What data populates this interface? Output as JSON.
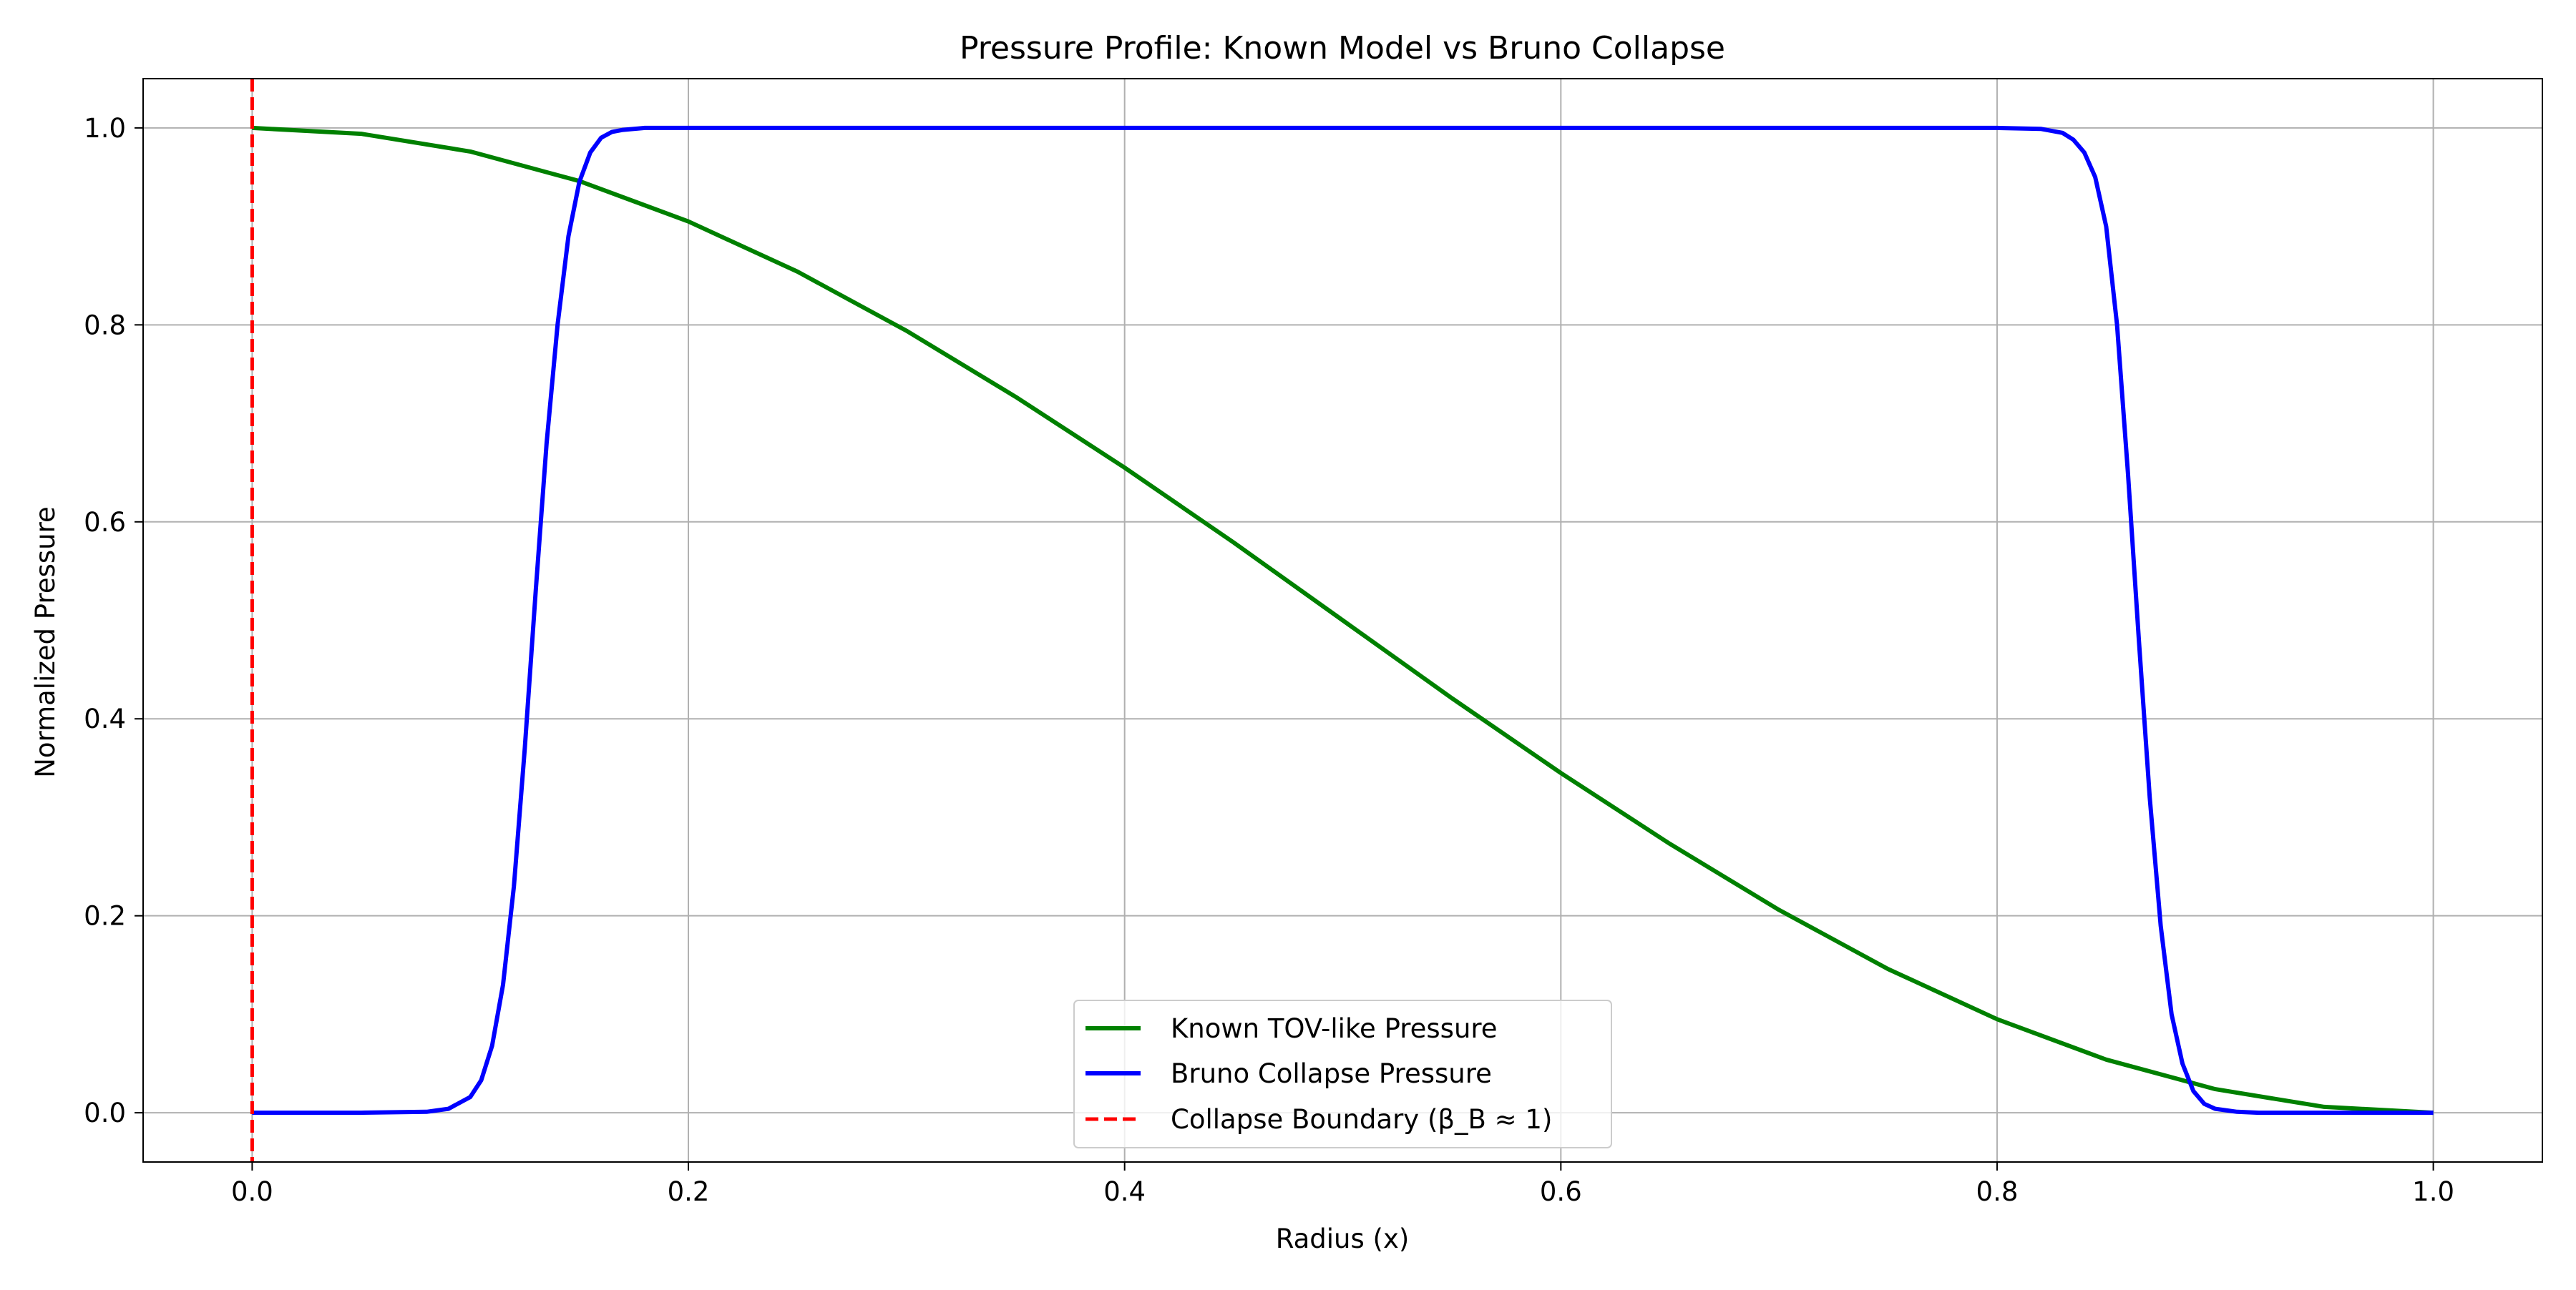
{
  "chart_data": {
    "type": "line",
    "title": "Pressure Profile: Known Model vs Bruno Collapse",
    "xlabel": "Radius (x)",
    "ylabel": "Normalized Pressure",
    "xlim": [
      -0.05,
      1.05
    ],
    "ylim": [
      -0.05,
      1.05
    ],
    "xticks": [
      0.0,
      0.2,
      0.4,
      0.6,
      0.8,
      1.0
    ],
    "xtick_labels": [
      "0.0",
      "0.2",
      "0.4",
      "0.6",
      "0.8",
      "1.0"
    ],
    "yticks": [
      0.0,
      0.2,
      0.4,
      0.6,
      0.8,
      1.0
    ],
    "ytick_labels": [
      "0.0",
      "0.2",
      "0.4",
      "0.6",
      "0.8",
      "1.0"
    ],
    "grid": true,
    "legend_position": "bottom-center",
    "series": [
      {
        "name": "Known TOV-like Pressure",
        "color": "#008000",
        "style": "solid",
        "x": [
          0.0,
          0.05,
          0.1,
          0.15,
          0.2,
          0.25,
          0.3,
          0.35,
          0.4,
          0.45,
          0.5,
          0.55,
          0.6,
          0.65,
          0.7,
          0.75,
          0.8,
          0.85,
          0.9,
          0.95,
          1.0
        ],
        "y": [
          1.0,
          0.994,
          0.976,
          0.946,
          0.905,
          0.854,
          0.794,
          0.727,
          0.655,
          0.579,
          0.5,
          0.421,
          0.345,
          0.273,
          0.206,
          0.146,
          0.095,
          0.054,
          0.024,
          0.006,
          0.0
        ]
      },
      {
        "name": "Bruno Collapse Pressure",
        "color": "#0000ff",
        "style": "solid",
        "x": [
          0.0,
          0.05,
          0.08,
          0.09,
          0.1,
          0.105,
          0.11,
          0.115,
          0.12,
          0.125,
          0.13,
          0.135,
          0.14,
          0.145,
          0.15,
          0.155,
          0.16,
          0.165,
          0.17,
          0.18,
          0.2,
          0.5,
          0.8,
          0.82,
          0.83,
          0.835,
          0.84,
          0.845,
          0.85,
          0.855,
          0.86,
          0.865,
          0.87,
          0.875,
          0.88,
          0.885,
          0.89,
          0.895,
          0.9,
          0.91,
          0.92,
          0.95,
          1.0
        ],
        "y": [
          0.0,
          0.0,
          0.001,
          0.004,
          0.016,
          0.033,
          0.068,
          0.13,
          0.23,
          0.37,
          0.53,
          0.68,
          0.8,
          0.89,
          0.945,
          0.975,
          0.99,
          0.996,
          0.998,
          1.0,
          1.0,
          1.0,
          1.0,
          0.999,
          0.995,
          0.988,
          0.975,
          0.95,
          0.9,
          0.8,
          0.65,
          0.48,
          0.32,
          0.19,
          0.1,
          0.05,
          0.022,
          0.009,
          0.004,
          0.001,
          0.0,
          0.0,
          0.0
        ]
      },
      {
        "name": "Collapse Boundary (β_B ≈ 1)",
        "color": "#ff0000",
        "style": "dashed",
        "vline_x": 0.0
      }
    ]
  }
}
